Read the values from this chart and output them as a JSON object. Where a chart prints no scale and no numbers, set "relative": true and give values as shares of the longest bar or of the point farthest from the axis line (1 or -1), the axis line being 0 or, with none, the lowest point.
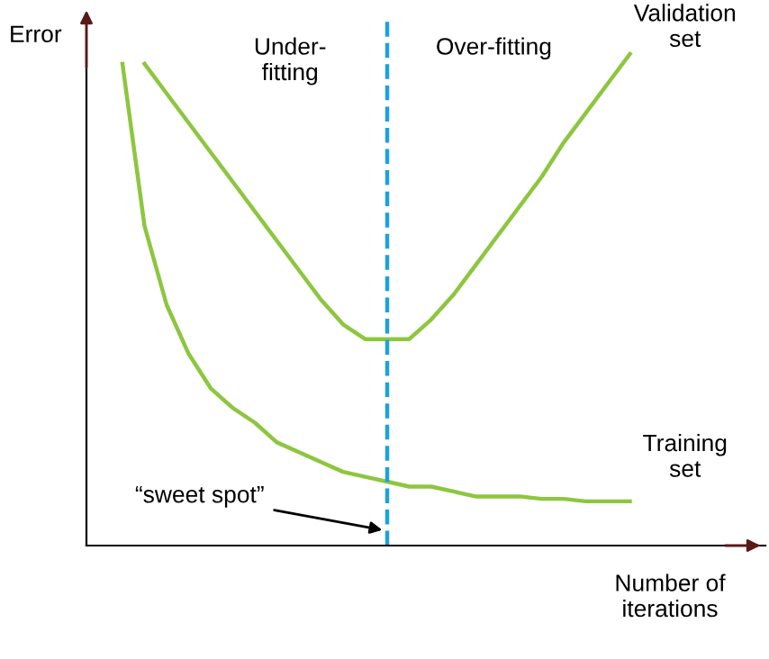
{
  "chart_data": {
    "type": "line",
    "relative": true,
    "xlabel": "Number of\niterations",
    "ylabel": "Error",
    "categories": [
      null,
      null,
      null,
      null,
      null,
      null,
      null,
      null,
      null,
      null,
      null,
      null,
      null,
      null,
      null,
      null,
      null,
      null,
      null,
      null,
      null,
      null,
      null,
      null
    ],
    "series": [
      {
        "name": "Validation\nset",
        "color": "#8dc63f",
        "values": [
          null,
          0.98,
          0.92,
          0.86,
          0.8,
          0.74,
          0.68,
          0.62,
          0.56,
          0.5,
          0.45,
          0.42,
          0.42,
          0.42,
          0.46,
          0.51,
          0.57,
          0.63,
          0.69,
          0.75,
          0.82,
          0.88,
          0.94,
          1.0
        ]
      },
      {
        "name": "Training\nset",
        "color": "#8dc63f",
        "values": [
          0.98,
          0.65,
          0.49,
          0.39,
          0.32,
          0.28,
          0.25,
          0.21,
          0.19,
          0.17,
          0.15,
          0.14,
          0.13,
          0.12,
          0.12,
          0.11,
          0.1,
          0.1,
          0.1,
          0.095,
          0.095,
          0.09,
          0.09,
          0.09
        ]
      }
    ],
    "annotations": [
      "Under-\nfitting",
      "Over-fitting",
      "“sweet spot”"
    ],
    "legend": false,
    "marker": "none",
    "line_style": "solid"
  }
}
